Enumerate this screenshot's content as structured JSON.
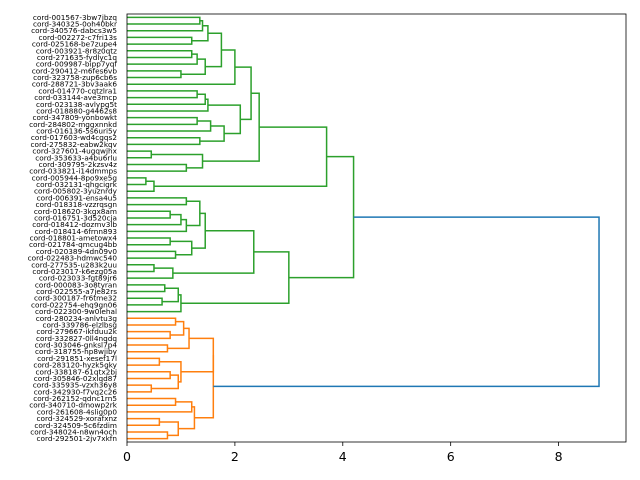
{
  "chart_data": {
    "type": "dendrogram",
    "orientation": "right",
    "title": "",
    "xlabel": "",
    "ylabel": "",
    "xlim": [
      0,
      9.25
    ],
    "xticks": [
      0,
      2,
      4,
      6,
      8
    ],
    "leaves": [
      "cord-001567-3bw7jbzq",
      "cord-340325-0oh40bkr",
      "cord-340576-dabcs3w5",
      "cord-002272-c7fri13s",
      "cord-025168-be7zupe4",
      "cord-003921-8r8z0qtz",
      "cord-271635-fydlyc1q",
      "cord-009987-bipp7yqf",
      "cord-290412-m6fes6vb",
      "cord-323758-zup6cb6s",
      "cord-288721-3bv3aak6",
      "cord-014770-cqtzlra1",
      "cord-033144-ave3mcp",
      "cord-023138-avlypg5t",
      "cord-018880-g4462s8",
      "cord-347809-yonbowkt",
      "cord-284802-mggxnnkd",
      "cord-016136-5s6uri5y",
      "cord-017603-wd4cgqs2",
      "cord-275832-eabw2kqv",
      "cord-327601-4ugqwjhx",
      "cord-353633-a4bu6rlu",
      "cord-309795-2kzsv4z",
      "cord-033821-i14dmmps",
      "cord-005944-8po9xe5g",
      "cord-032131-qhgcigrk",
      "cord-005802-3yuznrdy",
      "cord-006391-ensa4u5",
      "cord-018318-vzzrqsgn",
      "cord-018620-3kgx8am",
      "cord-016751-3d520cja",
      "cord-018412-dozmv3lb",
      "cord-018414-6frnn893",
      "cord-018801-ametowx4",
      "cord-021784-qmcug4bb",
      "cord-020389-4dn09v0",
      "cord-022483-hdmwc540",
      "cord-277535-u283k2uu",
      "cord-023017-k6ezg05a",
      "cord-023033-fgt89jr6",
      "cord-000083-3o8tyran",
      "cord-022555-a7je82rs",
      "cord-300187-fr6tme32",
      "cord-022754-ehq9gn06",
      "cord-022300-9w0lehal",
      "cord-280234-anlvtu3g",
      "cord-339786-elzlbsg",
      "cord-279667-ikfduu2k",
      "cord-332827-0ll4nqdq",
      "cord-303046-gnksl7p4",
      "cord-318755-hp8wjiby",
      "cord-291851-xesef17l",
      "cord-283120-hyzk5gky",
      "cord-338187-61qtx2bj",
      "cord-305846-02xlqd87",
      "cord-335935-vzxh36y8",
      "cord-342930-f7vq2c26",
      "cord-262152-qdnc1rn5",
      "cord-340710-dmowp2rk",
      "cord-261608-4slig0p0",
      "cord-324529-xorafxnz",
      "cord-324509-5c6fzdim",
      "cord-348024-n8wn4och",
      "cord-292501-2jv7xkfn"
    ],
    "colors": {
      "cluster_orange": "#ff7f0e",
      "cluster_green": "#2ca02c",
      "root_blue": "#1f77b4"
    },
    "linkage": [
      {
        "a": "L0",
        "b": "L1",
        "h": 1.35,
        "c": "g"
      },
      {
        "a": "N0",
        "b": "L2",
        "h": 1.4,
        "c": "g"
      },
      {
        "a": "L3",
        "b": "L4",
        "h": 1.2,
        "c": "g"
      },
      {
        "a": "N1",
        "b": "N2",
        "h": 1.5,
        "c": "g"
      },
      {
        "a": "L5",
        "b": "L6",
        "h": 1.2,
        "c": "g"
      },
      {
        "a": "N4",
        "b": "L7",
        "h": 1.3,
        "c": "g"
      },
      {
        "a": "L8",
        "b": "L9",
        "h": 1.0,
        "c": "g"
      },
      {
        "a": "N5",
        "b": "N6",
        "h": 1.45,
        "c": "g"
      },
      {
        "a": "N3",
        "b": "N7",
        "h": 1.75,
        "c": "g"
      },
      {
        "a": "N8",
        "b": "L10",
        "h": 2.0,
        "c": "g"
      },
      {
        "a": "L11",
        "b": "L12",
        "h": 1.3,
        "c": "g"
      },
      {
        "a": "N10",
        "b": "L13",
        "h": 1.45,
        "c": "g"
      },
      {
        "a": "N11",
        "b": "L14",
        "h": 1.5,
        "c": "g"
      },
      {
        "a": "L15",
        "b": "L16",
        "h": 1.3,
        "c": "g"
      },
      {
        "a": "N13",
        "b": "L17",
        "h": 1.55,
        "c": "g"
      },
      {
        "a": "L18",
        "b": "L19",
        "h": 1.35,
        "c": "g"
      },
      {
        "a": "N14",
        "b": "N15",
        "h": 1.8,
        "c": "g"
      },
      {
        "a": "N12",
        "b": "N16",
        "h": 2.1,
        "c": "g"
      },
      {
        "a": "N9",
        "b": "N17",
        "h": 2.3,
        "c": "g"
      },
      {
        "a": "L20",
        "b": "L21",
        "h": 0.45,
        "c": "g"
      },
      {
        "a": "L22",
        "b": "L23",
        "h": 1.1,
        "c": "g"
      },
      {
        "a": "N19",
        "b": "N20",
        "h": 1.4,
        "c": "g"
      },
      {
        "a": "N18",
        "b": "N21",
        "h": 2.45,
        "c": "g"
      },
      {
        "a": "L24",
        "b": "L25",
        "h": 0.35,
        "c": "g"
      },
      {
        "a": "N23",
        "b": "L26",
        "h": 0.5,
        "c": "g"
      },
      {
        "a": "N22",
        "b": "N24",
        "h": 3.7,
        "c": "g"
      },
      {
        "a": "L27",
        "b": "L28",
        "h": 1.1,
        "c": "g"
      },
      {
        "a": "L29",
        "b": "L30",
        "h": 0.8,
        "c": "g"
      },
      {
        "a": "N27",
        "b": "L31",
        "h": 1.0,
        "c": "g"
      },
      {
        "a": "N28",
        "b": "L32",
        "h": 1.1,
        "c": "g"
      },
      {
        "a": "N26",
        "b": "N29",
        "h": 1.35,
        "c": "g"
      },
      {
        "a": "L33",
        "b": "L34",
        "h": 0.8,
        "c": "g"
      },
      {
        "a": "L35",
        "b": "L36",
        "h": 0.9,
        "c": "g"
      },
      {
        "a": "N31",
        "b": "N32",
        "h": 1.2,
        "c": "g"
      },
      {
        "a": "N30",
        "b": "N33",
        "h": 1.45,
        "c": "g"
      },
      {
        "a": "L37",
        "b": "L38",
        "h": 0.5,
        "c": "g"
      },
      {
        "a": "N35",
        "b": "L39",
        "h": 0.85,
        "c": "g"
      },
      {
        "a": "N34",
        "b": "N36",
        "h": 2.35,
        "c": "g"
      },
      {
        "a": "L40",
        "b": "L41",
        "h": 0.7,
        "c": "g"
      },
      {
        "a": "L42",
        "b": "L43",
        "h": 0.65,
        "c": "g"
      },
      {
        "a": "N38",
        "b": "N39",
        "h": 0.95,
        "c": "g"
      },
      {
        "a": "N40",
        "b": "L44",
        "h": 1.0,
        "c": "g"
      },
      {
        "a": "N37",
        "b": "N41",
        "h": 3.0,
        "c": "g"
      },
      {
        "a": "N25",
        "b": "N42",
        "h": 4.2,
        "c": "g"
      },
      {
        "a": "L45",
        "b": "L46",
        "h": 0.9,
        "c": "o"
      },
      {
        "a": "L47",
        "b": "L48",
        "h": 0.8,
        "c": "o"
      },
      {
        "a": "N44",
        "b": "N45",
        "h": 1.05,
        "c": "o"
      },
      {
        "a": "L49",
        "b": "L50",
        "h": 0.75,
        "c": "o"
      },
      {
        "a": "N46",
        "b": "N47",
        "h": 1.15,
        "c": "o"
      },
      {
        "a": "L51",
        "b": "L52",
        "h": 0.6,
        "c": "o"
      },
      {
        "a": "L53",
        "b": "L54",
        "h": 0.8,
        "c": "o"
      },
      {
        "a": "L55",
        "b": "L56",
        "h": 0.45,
        "c": "o"
      },
      {
        "a": "N50",
        "b": "N51",
        "h": 0.95,
        "c": "o"
      },
      {
        "a": "N49",
        "b": "N52",
        "h": 1.0,
        "c": "o"
      },
      {
        "a": "N48",
        "b": "N53",
        "h": 1.6,
        "c": "o"
      },
      {
        "a": "L57",
        "b": "L58",
        "h": 0.9,
        "c": "o"
      },
      {
        "a": "N55",
        "b": "L59",
        "h": 1.2,
        "c": "o"
      },
      {
        "a": "L60",
        "b": "L61",
        "h": 0.6,
        "c": "o"
      },
      {
        "a": "L62",
        "b": "L63",
        "h": 0.75,
        "c": "o"
      },
      {
        "a": "N57",
        "b": "N58",
        "h": 0.95,
        "c": "o"
      },
      {
        "a": "N56",
        "b": "N59",
        "h": 1.25,
        "c": "o"
      },
      {
        "a": "N54",
        "b": "N60",
        "h": 1.6,
        "c": "o"
      },
      {
        "a": "N43",
        "b": "N61",
        "h": 8.75,
        "c": "b"
      }
    ]
  }
}
